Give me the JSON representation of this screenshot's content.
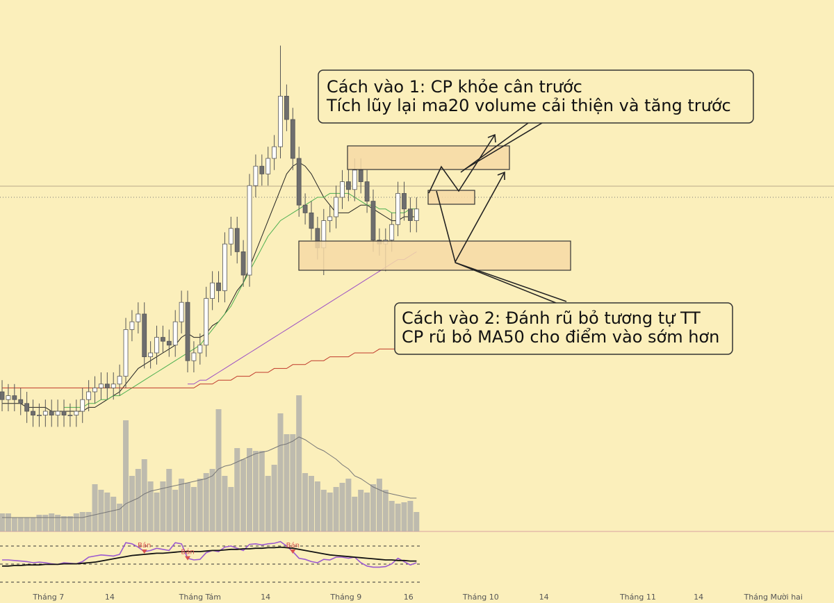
{
  "chart_data": {
    "type": "candlestick",
    "annotations": [
      [
        "Cách vào 1: CP khỏe cân trước",
        "Tích lũy lại ma20 volume cải thiện và tăng trước"
      ],
      [
        "Cách vào 2: Đánh rũ bỏ tương tự TT",
        "CP rũ bỏ MA50 cho điểm vào sớm hơn"
      ]
    ],
    "xlim": [
      -0.34,
      134.5
    ],
    "xticks": [
      {
        "value": 7.5,
        "label": "Tháng 7"
      },
      {
        "value": 17.4,
        "label": "14"
      },
      {
        "value": 32,
        "label": "Tháng Tám"
      },
      {
        "value": 42.6,
        "label": "14"
      },
      {
        "value": 55.6,
        "label": "Tháng 9"
      },
      {
        "value": 65.7,
        "label": "16"
      },
      {
        "value": 77.4,
        "label": "Tháng 10"
      },
      {
        "value": 87.6,
        "label": "14"
      },
      {
        "value": 102.8,
        "label": "Tháng 11"
      },
      {
        "value": 112.6,
        "label": "14"
      },
      {
        "value": 124.7,
        "label": "Tháng Mười hai"
      }
    ],
    "ylim": [
      0,
      100
    ],
    "open": [
      10,
      8,
      9,
      8,
      7,
      5,
      4,
      4,
      5,
      4,
      5,
      4,
      4,
      5,
      8,
      10,
      11,
      12,
      11,
      12,
      14,
      26,
      28,
      30,
      19,
      20,
      24,
      23,
      22,
      28,
      33,
      18,
      20,
      22,
      34,
      38,
      36,
      48,
      52,
      46,
      40,
      63,
      68,
      66,
      70,
      73,
      86,
      80,
      70,
      58,
      56,
      52,
      47,
      54,
      55,
      60,
      64,
      62,
      67,
      64,
      59,
      49,
      48,
      49,
      53,
      61,
      57,
      54
    ],
    "high": [
      13,
      12,
      12,
      11,
      10,
      8,
      7,
      8,
      8,
      8,
      8,
      7,
      8,
      11,
      13,
      14,
      15,
      15,
      15,
      17,
      29,
      31,
      33,
      33,
      23,
      27,
      27,
      26,
      31,
      36,
      36,
      23,
      25,
      37,
      41,
      41,
      51,
      55,
      55,
      49,
      66,
      71,
      71,
      73,
      76,
      99,
      89,
      83,
      73,
      61,
      59,
      55,
      57,
      58,
      63,
      67,
      67,
      70,
      70,
      67,
      62,
      52,
      52,
      56,
      64,
      64,
      60,
      60
    ],
    "low": [
      5,
      5,
      5,
      4,
      2,
      1,
      1,
      1,
      1,
      1,
      1,
      1,
      1,
      2,
      5,
      7,
      8,
      8,
      8,
      9,
      11,
      23,
      25,
      16,
      16,
      17,
      20,
      19,
      19,
      25,
      15,
      15,
      17,
      19,
      31,
      33,
      33,
      45,
      43,
      37,
      37,
      60,
      63,
      63,
      67,
      70,
      77,
      67,
      55,
      53,
      49,
      44,
      40,
      51,
      52,
      57,
      59,
      59,
      61,
      56,
      46,
      45,
      41,
      46,
      50,
      54,
      51,
      51
    ],
    "close": [
      8,
      9,
      8,
      7,
      5,
      4,
      4,
      5,
      4,
      5,
      4,
      4,
      5,
      8,
      10,
      11,
      12,
      11,
      12,
      14,
      26,
      28,
      30,
      19,
      20,
      24,
      23,
      22,
      28,
      33,
      18,
      20,
      22,
      34,
      38,
      36,
      48,
      52,
      46,
      40,
      63,
      68,
      66,
      70,
      73,
      86,
      80,
      70,
      58,
      56,
      52,
      47,
      54,
      55,
      60,
      64,
      62,
      67,
      64,
      59,
      49,
      48,
      49,
      53,
      61,
      57,
      54,
      57
    ],
    "lines": [
      {
        "color": "#222222",
        "values": [
          7,
          7,
          7,
          7,
          6,
          6,
          6,
          6,
          5,
          5,
          5,
          5,
          5,
          5,
          6,
          6,
          7,
          8,
          9,
          10,
          12,
          14,
          16,
          17,
          18,
          19,
          20,
          21,
          22,
          24,
          25,
          24,
          24,
          25,
          27,
          28,
          30,
          33,
          36,
          38,
          42,
          46,
          50,
          54,
          58,
          62,
          66,
          68,
          69,
          68,
          66,
          63,
          60,
          58,
          56,
          56,
          56,
          57,
          58,
          58,
          57,
          56,
          55,
          54,
          54,
          55,
          55,
          55
        ]
      },
      {
        "color": "#4caf50",
        "values": [
          null,
          null,
          null,
          null,
          null,
          null,
          null,
          null,
          null,
          null,
          6,
          6,
          6,
          6,
          7,
          7,
          8,
          8,
          9,
          9,
          10,
          11,
          12,
          13,
          14,
          15,
          16,
          17,
          18,
          19,
          20,
          21,
          22,
          24,
          26,
          28,
          30,
          32,
          35,
          38,
          41,
          44,
          47,
          50,
          52,
          54,
          55,
          56,
          57,
          58,
          59,
          60,
          60,
          61,
          61,
          61,
          61,
          60,
          59,
          58,
          58,
          57,
          57,
          56,
          56,
          56,
          57,
          57
        ]
      },
      {
        "color": "#9c4fc4",
        "values": [
          null,
          null,
          null,
          null,
          null,
          null,
          null,
          null,
          null,
          null,
          null,
          null,
          null,
          null,
          null,
          null,
          null,
          null,
          null,
          null,
          null,
          null,
          null,
          null,
          null,
          null,
          null,
          null,
          null,
          null,
          12,
          12,
          13,
          13,
          14,
          15,
          16,
          17,
          18,
          19,
          20,
          21,
          22,
          23,
          24,
          25,
          26,
          27,
          28,
          29,
          30,
          31,
          32,
          33,
          34,
          35,
          36,
          37,
          38,
          39,
          40,
          41,
          42,
          43,
          44,
          44,
          45,
          46
        ]
      },
      {
        "color": "#c0392b",
        "values": [
          11,
          11,
          11,
          11,
          11,
          11,
          11,
          11,
          11,
          11,
          11,
          11,
          11,
          11,
          11,
          11,
          11,
          11,
          11,
          11,
          11,
          11,
          11,
          11,
          11,
          11,
          11,
          11,
          11,
          11,
          11,
          11,
          12,
          12,
          12,
          13,
          13,
          13,
          14,
          14,
          14,
          15,
          15,
          15,
          16,
          16,
          16,
          17,
          17,
          17,
          18,
          18,
          18,
          19,
          19,
          19,
          19,
          20,
          20,
          20,
          20,
          21,
          21,
          21,
          21,
          22,
          22,
          22
        ]
      }
    ],
    "volume": [
      13,
      13,
      10,
      10,
      10,
      10,
      12,
      12,
      13,
      12,
      11,
      11,
      13,
      14,
      14,
      34,
      30,
      28,
      25,
      20,
      80,
      40,
      45,
      52,
      36,
      28,
      36,
      45,
      30,
      38,
      35,
      32,
      38,
      42,
      45,
      88,
      40,
      32,
      60,
      52,
      60,
      58,
      58,
      40,
      48,
      85,
      70,
      70,
      98,
      42,
      40,
      36,
      30,
      28,
      32,
      35,
      38,
      25,
      30,
      28,
      34,
      38,
      30,
      22,
      20,
      21,
      22,
      14
    ],
    "volume_ma": [
      10,
      10,
      10,
      10,
      10,
      10,
      10,
      10,
      10,
      10,
      10,
      10,
      10,
      10,
      11,
      12,
      13,
      14,
      15,
      16,
      20,
      22,
      24,
      27,
      29,
      30,
      31,
      32,
      33,
      34,
      35,
      36,
      37,
      38,
      40,
      45,
      47,
      48,
      50,
      52,
      54,
      56,
      57,
      58,
      60,
      62,
      63,
      65,
      68,
      66,
      63,
      60,
      58,
      55,
      52,
      48,
      45,
      40,
      38,
      35,
      32,
      30,
      28,
      27,
      26,
      25,
      24,
      24
    ],
    "volume_ylim": [
      0,
      100
    ],
    "rsi": [
      55,
      55,
      54,
      53,
      52,
      50,
      51,
      50,
      48,
      47,
      50,
      49,
      48,
      52,
      60,
      62,
      64,
      63,
      62,
      65,
      86,
      84,
      78,
      70,
      72,
      76,
      74,
      72,
      86,
      84,
      58,
      55,
      56,
      68,
      72,
      70,
      78,
      80,
      76,
      72,
      83,
      84,
      82,
      84,
      85,
      88,
      80,
      70,
      58,
      56,
      52,
      50,
      56,
      55,
      60,
      60,
      58,
      60,
      50,
      44,
      42,
      42,
      43,
      48,
      58,
      52,
      46,
      50
    ],
    "rsi_signal": [
      44,
      44,
      45,
      45,
      46,
      46,
      46,
      47,
      47,
      47,
      48,
      48,
      48,
      49,
      50,
      51,
      53,
      55,
      57,
      59,
      61,
      63,
      64,
      65,
      66,
      67,
      67,
      68,
      69,
      70,
      70,
      70,
      70,
      71,
      72,
      72,
      73,
      74,
      74,
      75,
      75,
      76,
      76,
      77,
      77,
      78,
      77,
      76,
      74,
      72,
      70,
      68,
      66,
      64,
      63,
      62,
      61,
      60,
      59,
      58,
      57,
      56,
      55,
      55,
      54,
      54,
      53,
      53
    ],
    "rsi_ylim": [
      0,
      100
    ],
    "signals": [
      {
        "index": 23,
        "label": "Bán"
      },
      {
        "index": 30,
        "label": "Bán"
      },
      {
        "index": 47,
        "label": "Bán"
      }
    ]
  }
}
